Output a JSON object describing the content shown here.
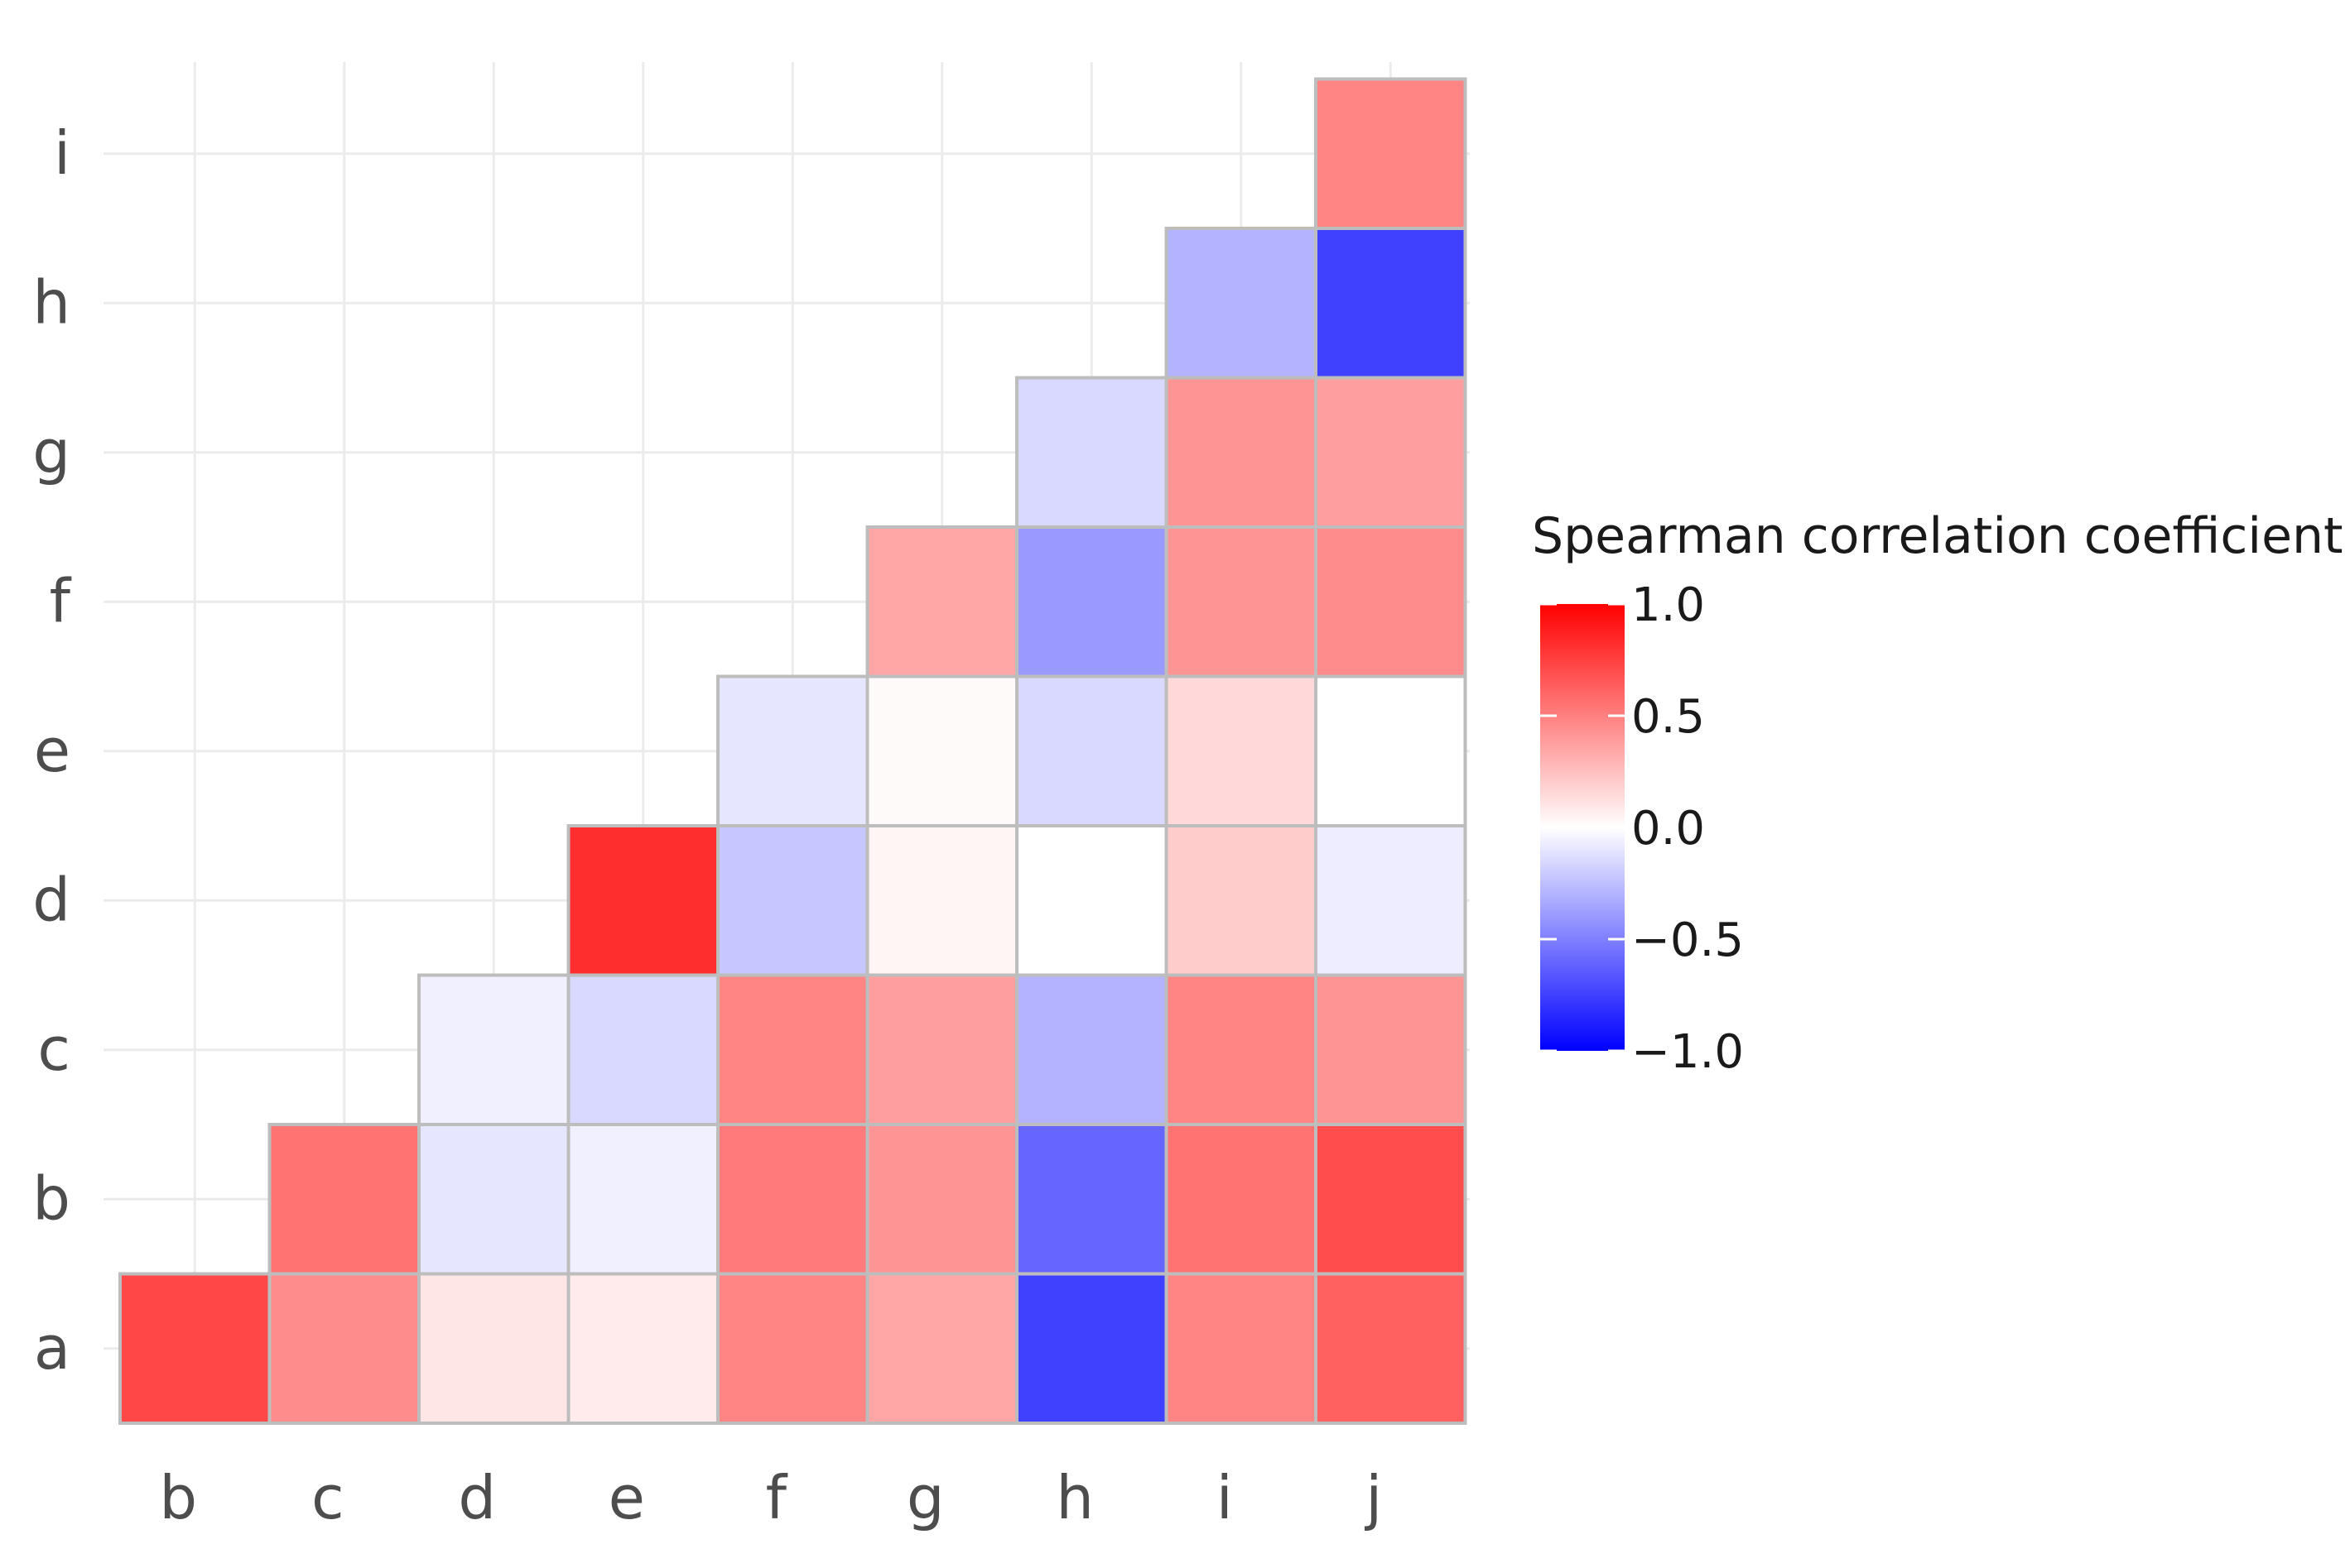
{
  "chart_data": {
    "type": "heatmap",
    "title": "",
    "xlabel": "",
    "ylabel": "",
    "x_categories": [
      "b",
      "c",
      "d",
      "e",
      "f",
      "g",
      "h",
      "i",
      "j"
    ],
    "y_categories": [
      "a",
      "b",
      "c",
      "d",
      "e",
      "f",
      "g",
      "h",
      "i"
    ],
    "values": [
      {
        "x": "b",
        "y": "a",
        "value": 0.72
      },
      {
        "x": "c",
        "y": "a",
        "value": 0.45
      },
      {
        "x": "d",
        "y": "a",
        "value": 0.1
      },
      {
        "x": "e",
        "y": "a",
        "value": 0.08
      },
      {
        "x": "f",
        "y": "a",
        "value": 0.48
      },
      {
        "x": "g",
        "y": "a",
        "value": 0.35
      },
      {
        "x": "h",
        "y": "a",
        "value": -0.75
      },
      {
        "x": "i",
        "y": "a",
        "value": 0.48
      },
      {
        "x": "j",
        "y": "a",
        "value": 0.62
      },
      {
        "x": "c",
        "y": "b",
        "value": 0.55
      },
      {
        "x": "d",
        "y": "b",
        "value": -0.1
      },
      {
        "x": "e",
        "y": "b",
        "value": -0.06
      },
      {
        "x": "f",
        "y": "b",
        "value": 0.52
      },
      {
        "x": "g",
        "y": "b",
        "value": 0.42
      },
      {
        "x": "h",
        "y": "b",
        "value": -0.6
      },
      {
        "x": "i",
        "y": "b",
        "value": 0.55
      },
      {
        "x": "j",
        "y": "b",
        "value": 0.7
      },
      {
        "x": "d",
        "y": "c",
        "value": -0.06
      },
      {
        "x": "e",
        "y": "c",
        "value": -0.15
      },
      {
        "x": "f",
        "y": "c",
        "value": 0.48
      },
      {
        "x": "g",
        "y": "c",
        "value": 0.38
      },
      {
        "x": "h",
        "y": "c",
        "value": -0.3
      },
      {
        "x": "i",
        "y": "c",
        "value": 0.48
      },
      {
        "x": "j",
        "y": "c",
        "value": 0.42
      },
      {
        "x": "e",
        "y": "d",
        "value": 0.82
      },
      {
        "x": "f",
        "y": "d",
        "value": -0.22
      },
      {
        "x": "g",
        "y": "d",
        "value": 0.04
      },
      {
        "x": "h",
        "y": "d",
        "value": 0.0
      },
      {
        "x": "i",
        "y": "d",
        "value": 0.2
      },
      {
        "x": "j",
        "y": "d",
        "value": -0.07
      },
      {
        "x": "f",
        "y": "e",
        "value": -0.1
      },
      {
        "x": "g",
        "y": "e",
        "value": 0.02
      },
      {
        "x": "h",
        "y": "e",
        "value": -0.15
      },
      {
        "x": "i",
        "y": "e",
        "value": 0.15
      },
      {
        "x": "j",
        "y": "e",
        "value": 0.0
      },
      {
        "x": "g",
        "y": "f",
        "value": 0.35
      },
      {
        "x": "h",
        "y": "f",
        "value": -0.4
      },
      {
        "x": "i",
        "y": "f",
        "value": 0.42
      },
      {
        "x": "j",
        "y": "f",
        "value": 0.45
      },
      {
        "x": "h",
        "y": "g",
        "value": -0.15
      },
      {
        "x": "i",
        "y": "g",
        "value": 0.42
      },
      {
        "x": "j",
        "y": "g",
        "value": 0.38
      },
      {
        "x": "i",
        "y": "h",
        "value": -0.3
      },
      {
        "x": "j",
        "y": "h",
        "value": -0.75
      },
      {
        "x": "j",
        "y": "i",
        "value": 0.48
      }
    ],
    "color_scale": {
      "min": -1.0,
      "mid": 0.0,
      "max": 1.0,
      "low_color": "#0000ff",
      "mid_color": "#ffffff",
      "high_color": "#ff0000"
    },
    "legend": {
      "title": "Spearman correlation coefficient",
      "placement": "right",
      "ticks": [
        {
          "value": 1.0,
          "label": "1.0"
        },
        {
          "value": 0.5,
          "label": "0.5"
        },
        {
          "value": 0.0,
          "label": "0.0"
        },
        {
          "value": -0.5,
          "label": "−0.5"
        },
        {
          "value": -1.0,
          "label": "−1.0"
        }
      ]
    },
    "grid": true,
    "colors": {
      "grid": "#ebebeb",
      "cell_border": "#bdbdbd",
      "tick_text": "#4d4d4d"
    }
  }
}
